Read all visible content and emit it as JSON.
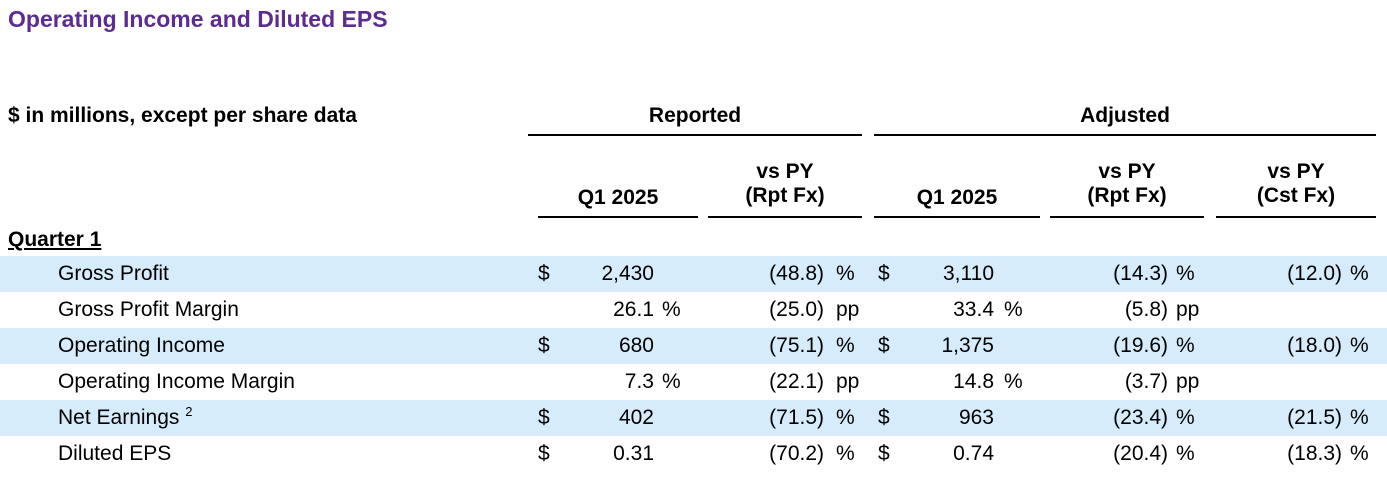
{
  "title": "Operating Income and Diluted EPS",
  "header": {
    "units": "$ in millions, except per share data",
    "groups": {
      "reported": "Reported",
      "adjusted": "Adjusted"
    },
    "columns": {
      "rep_q": "Q1 2025",
      "rep_vs_l1": "vs PY",
      "rep_vs_l2": "(Rpt Fx)",
      "adj_q": "Q1 2025",
      "adj_vs_l1": "vs PY",
      "adj_vs_l2": "(Rpt Fx)",
      "adj_cst_l1": "vs PY",
      "adj_cst_l2": "(Cst Fx)"
    }
  },
  "section": "Quarter 1",
  "rows": [
    {
      "label": "Gross Profit",
      "footnote": "",
      "shaded": true,
      "rep_cur": "$",
      "rep_val": "2,430",
      "rep_unit": "",
      "rep_vs": "(48.8)",
      "rep_vs_unit": "%",
      "adj_cur": "$",
      "adj_val": "3,110",
      "adj_unit": "",
      "adj_vs": "(14.3)",
      "adj_vs_unit": "%",
      "cst": "(12.0)",
      "cst_unit": "%"
    },
    {
      "label": "Gross Profit Margin",
      "footnote": "",
      "shaded": false,
      "rep_cur": "",
      "rep_val": "26.1",
      "rep_unit": "%",
      "rep_vs": "(25.0)",
      "rep_vs_unit": "pp",
      "adj_cur": "",
      "adj_val": "33.4",
      "adj_unit": "%",
      "adj_vs": "(5.8)",
      "adj_vs_unit": "pp",
      "cst": "",
      "cst_unit": ""
    },
    {
      "label": "Operating Income",
      "footnote": "",
      "shaded": true,
      "rep_cur": "$",
      "rep_val": "680",
      "rep_unit": "",
      "rep_vs": "(75.1)",
      "rep_vs_unit": "%",
      "adj_cur": "$",
      "adj_val": "1,375",
      "adj_unit": "",
      "adj_vs": "(19.6)",
      "adj_vs_unit": "%",
      "cst": "(18.0)",
      "cst_unit": "%"
    },
    {
      "label": "Operating Income Margin",
      "footnote": "",
      "shaded": false,
      "rep_cur": "",
      "rep_val": "7.3",
      "rep_unit": "%",
      "rep_vs": "(22.1)",
      "rep_vs_unit": "pp",
      "adj_cur": "",
      "adj_val": "14.8",
      "adj_unit": "%",
      "adj_vs": "(3.7)",
      "adj_vs_unit": "pp",
      "cst": "",
      "cst_unit": ""
    },
    {
      "label": "Net Earnings",
      "footnote": "2",
      "shaded": true,
      "rep_cur": "$",
      "rep_val": "402",
      "rep_unit": "",
      "rep_vs": "(71.5)",
      "rep_vs_unit": "%",
      "adj_cur": "$",
      "adj_val": "963",
      "adj_unit": "",
      "adj_vs": "(23.4)",
      "adj_vs_unit": "%",
      "cst": "(21.5)",
      "cst_unit": "%"
    },
    {
      "label": "Diluted EPS",
      "footnote": "",
      "shaded": false,
      "rep_cur": "$",
      "rep_val": "0.31",
      "rep_unit": "",
      "rep_vs": "(70.2)",
      "rep_vs_unit": "%",
      "adj_cur": "$",
      "adj_val": "0.74",
      "adj_unit": "",
      "adj_vs": "(20.4)",
      "adj_vs_unit": "%",
      "cst": "(18.3)",
      "cst_unit": "%"
    }
  ],
  "colors": {
    "title": "#5c2d91",
    "band": "#d6ecfb",
    "rules": "#000000"
  }
}
